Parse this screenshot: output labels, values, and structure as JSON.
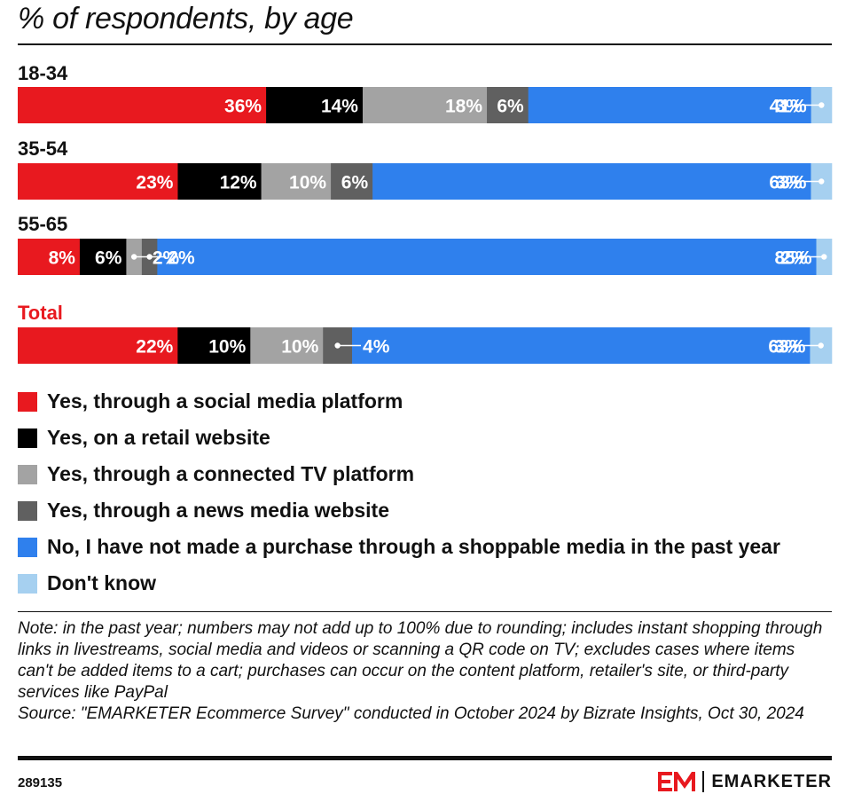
{
  "chart_data": {
    "type": "bar",
    "orientation": "horizontal",
    "stacked": true,
    "title": "% of respondents, by age",
    "legend_position": "bottom",
    "series": [
      {
        "name": "Yes, through a social media platform",
        "color": "#e8191f",
        "values": [
          36,
          23,
          8,
          22
        ],
        "labels": [
          "36%",
          "23%",
          "8%",
          "22%"
        ]
      },
      {
        "name": "Yes, on a retail website",
        "color": "#000000",
        "values": [
          14,
          12,
          6,
          10
        ],
        "labels": [
          "14%",
          "12%",
          "6%",
          "10%"
        ]
      },
      {
        "name": "Yes, through a connected TV platform",
        "color": "#a3a3a3",
        "values": [
          18,
          10,
          2,
          10
        ],
        "labels": [
          "18%",
          "10%",
          "2%",
          "10%"
        ]
      },
      {
        "name": "Yes, through a news media website",
        "color": "#606060",
        "values": [
          6,
          6,
          2,
          4
        ],
        "labels": [
          "6%",
          "6%",
          "2%",
          "4%"
        ]
      },
      {
        "name": "No, I have not made a purchase through a shoppable media in the past year",
        "color": "#2f80ed",
        "values": [
          41,
          63,
          85,
          63
        ],
        "labels": [
          "41%",
          "63%",
          "85%",
          "63%"
        ]
      },
      {
        "name": "Don't know",
        "color": "#a6d0f0",
        "values": [
          3,
          3,
          2,
          3
        ],
        "labels": [
          "3%",
          "3%",
          "2%",
          "3%"
        ]
      }
    ],
    "categories": [
      {
        "label": "18-34",
        "highlight": false
      },
      {
        "label": "35-54",
        "highlight": false
      },
      {
        "label": "55-65",
        "highlight": false
      },
      {
        "label": "Total",
        "highlight": true
      }
    ],
    "highlight_color": "#e8191f"
  },
  "note": "Note: in the past year; numbers may not add up to 100% due to rounding; includes instant shopping through links in livestreams, social media and videos or scanning a QR code on TV; excludes cases where items can't be added items to a cart; purchases can occur on the content platform, retailer's site, or third-party services like PayPal",
  "source": "Source: \"EMARKETER Ecommerce Survey\" conducted in October 2024 by Bizrate Insights, Oct 30, 2024",
  "chart_id": "289135",
  "brand": "EMARKETER",
  "brand_color": "#e8191f"
}
